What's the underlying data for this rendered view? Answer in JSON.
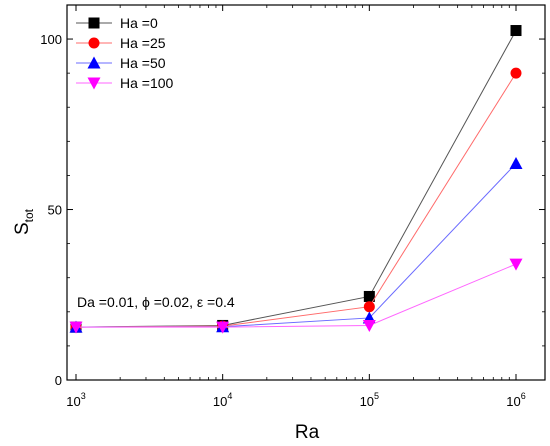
{
  "chart_data": {
    "type": "line",
    "xlabel": "Ra",
    "ylabel": "S",
    "ylabel_sub": "tot",
    "x_scale": "log",
    "x": [
      1000,
      10000,
      100000,
      1000000
    ],
    "xlim": [
      1000,
      1000000
    ],
    "ylim": [
      0,
      105
    ],
    "x_ticks": [
      {
        "base": "10",
        "exp": "3"
      },
      {
        "base": "10",
        "exp": "4"
      },
      {
        "base": "10",
        "exp": "5"
      },
      {
        "base": "10",
        "exp": "6"
      }
    ],
    "y_ticks": [
      "0",
      "50",
      "100"
    ],
    "y_tick_values": [
      0,
      50,
      100
    ],
    "legend_position": "top-left",
    "annotation": "Da =0.01, ϕ =0.02, ε =0.4",
    "grid": false,
    "series": [
      {
        "name": "Ha =0",
        "color": "#000000",
        "line_color": "#555555",
        "marker": "square",
        "values": [
          15.5,
          16.0,
          24.5,
          102.5
        ]
      },
      {
        "name": "Ha =25",
        "color": "#ff0000",
        "line_color": "#ff6b6b",
        "marker": "circle",
        "values": [
          15.5,
          15.8,
          21.5,
          90.0
        ]
      },
      {
        "name": "Ha =50",
        "color": "#0000ff",
        "line_color": "#6b6bff",
        "marker": "triangle-up",
        "values": [
          15.5,
          15.6,
          18.2,
          63.5
        ]
      },
      {
        "name": "Ha =100",
        "color": "#ff00ff",
        "line_color": "#ff66ff",
        "marker": "triangle-down",
        "values": [
          15.5,
          15.5,
          16.0,
          34.0
        ]
      }
    ]
  }
}
